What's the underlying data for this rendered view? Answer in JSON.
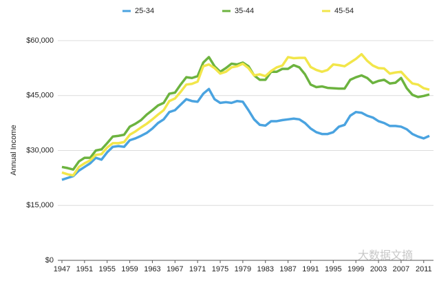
{
  "chart_data": {
    "type": "line",
    "y_label": "Annual Income",
    "watermark": "大数据文摘",
    "x": [
      1947,
      1948,
      1949,
      1950,
      1951,
      1952,
      1953,
      1954,
      1955,
      1956,
      1957,
      1958,
      1959,
      1960,
      1961,
      1962,
      1963,
      1964,
      1965,
      1966,
      1967,
      1968,
      1969,
      1970,
      1971,
      1972,
      1973,
      1974,
      1975,
      1976,
      1977,
      1978,
      1979,
      1980,
      1981,
      1982,
      1983,
      1984,
      1985,
      1986,
      1987,
      1988,
      1989,
      1990,
      1991,
      1992,
      1993,
      1994,
      1995,
      1996,
      1997,
      1998,
      1999,
      2000,
      2001,
      2002,
      2003,
      2004,
      2005,
      2006,
      2007,
      2008,
      2009,
      2010,
      2011,
      2012
    ],
    "series": [
      {
        "name": "25-34",
        "color": "#4aa3e0",
        "values": [
          22000,
          22500,
          23000,
          24500,
          25500,
          26500,
          28000,
          27500,
          29500,
          31000,
          31200,
          31000,
          32800,
          33300,
          34000,
          34800,
          36000,
          37500,
          38500,
          40500,
          41000,
          42500,
          44000,
          43500,
          43300,
          45500,
          46800,
          44000,
          43000,
          43200,
          43000,
          43500,
          43300,
          41000,
          38500,
          37000,
          36800,
          38000,
          38000,
          38300,
          38500,
          38700,
          38500,
          37500,
          36000,
          35000,
          34500,
          34500,
          35000,
          36500,
          37000,
          39500,
          40500,
          40300,
          39500,
          39000,
          38000,
          37500,
          36700,
          36700,
          36500,
          35800,
          34500,
          33800,
          33300,
          34000
        ]
      },
      {
        "name": "35-44",
        "color": "#6cb33f",
        "values": [
          25500,
          25200,
          24800,
          27000,
          28000,
          28000,
          30000,
          30300,
          32000,
          33800,
          34000,
          34300,
          36500,
          37300,
          38300,
          39800,
          41000,
          42300,
          43000,
          45500,
          45800,
          48000,
          50000,
          49800,
          50300,
          54000,
          55500,
          53000,
          51500,
          52500,
          53700,
          53500,
          54000,
          53000,
          50500,
          49300,
          49300,
          51500,
          51500,
          52300,
          52300,
          53300,
          52700,
          50800,
          48000,
          47300,
          47500,
          47100,
          47000,
          46900,
          46900,
          49300,
          50000,
          50500,
          49800,
          48400,
          49000,
          49300,
          48300,
          48500,
          49800,
          47000,
          45200,
          44600,
          44900,
          45300
        ]
      },
      {
        "name": "45-54",
        "color": "#f2e64a",
        "values": [
          24000,
          23500,
          23200,
          25500,
          26500,
          27300,
          28800,
          29000,
          30800,
          32000,
          32000,
          32300,
          34300,
          35200,
          36300,
          37300,
          38500,
          39800,
          41000,
          43500,
          44200,
          46000,
          48000,
          48200,
          48800,
          53000,
          53500,
          52500,
          51000,
          51500,
          52700,
          53000,
          53700,
          52500,
          50500,
          50800,
          50300,
          51700,
          52700,
          53200,
          55500,
          55200,
          55300,
          55300,
          52800,
          52000,
          51500,
          52000,
          53500,
          53300,
          53000,
          54000,
          55000,
          56300,
          54500,
          53200,
          52500,
          52400,
          51000,
          51300,
          51500,
          49800,
          48300,
          48000,
          47000,
          46600
        ]
      }
    ],
    "xlim": [
      1947,
      2012
    ],
    "xticks": [
      1947,
      1951,
      1955,
      1959,
      1963,
      1967,
      1971,
      1975,
      1979,
      1983,
      1987,
      1991,
      1995,
      1999,
      2003,
      2007,
      2011
    ],
    "ylim": [
      0,
      60000
    ],
    "yticks": [
      {
        "value": 0,
        "label": "$0"
      },
      {
        "value": 15000,
        "label": "$15,000"
      },
      {
        "value": 30000,
        "label": "$30,000"
      },
      {
        "value": 45000,
        "label": "$45,000"
      },
      {
        "value": 60000,
        "label": "$60,000"
      }
    ],
    "grid": true
  }
}
